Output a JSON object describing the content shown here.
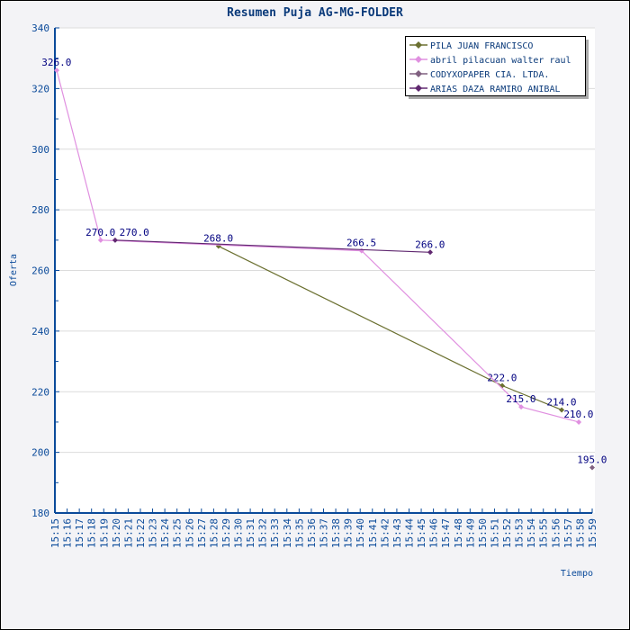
{
  "chart_data": {
    "type": "line",
    "title": "Resumen Puja AG-MG-FOLDER",
    "xlabel": "Tiempo",
    "ylabel": "Oferta",
    "ylim": [
      180,
      340
    ],
    "yticks": [
      180,
      200,
      220,
      240,
      260,
      280,
      300,
      320,
      340
    ],
    "xlim": [
      "15:15",
      "15:59"
    ],
    "xticks": [
      "15:15",
      "15:16",
      "15:17",
      "15:18",
      "15:19",
      "15:20",
      "15:21",
      "15:22",
      "15:23",
      "15:24",
      "15:25",
      "15:26",
      "15:27",
      "15:28",
      "15:29",
      "15:30",
      "15:31",
      "15:32",
      "15:33",
      "15:34",
      "15:35",
      "15:36",
      "15:37",
      "15:38",
      "15:39",
      "15:40",
      "15:41",
      "15:42",
      "15:43",
      "15:44",
      "15:45",
      "15:46",
      "15:47",
      "15:48",
      "15:49",
      "15:50",
      "15:51",
      "15:52",
      "15:53",
      "15:54",
      "15:55",
      "15:56",
      "15:57",
      "15:58",
      "15:59"
    ],
    "grid": true,
    "legend_position": "bottom-center",
    "series": [
      {
        "name": "PILA  JUAN FRANCISCO",
        "color": "#6b7030",
        "points": [
          {
            "x": "15:28:24",
            "y": 268.0,
            "label": "268.0"
          },
          {
            "x": "15:51:38",
            "y": 222.0,
            "label": "222.0"
          },
          {
            "x": "15:56:30",
            "y": 214.0,
            "label": "214.0"
          }
        ]
      },
      {
        "name": "abril pilacuan walter raul",
        "color": "#e090e0",
        "points": [
          {
            "x": "15:15:09",
            "y": 326.0,
            "label": "326.0"
          },
          {
            "x": "15:18:45",
            "y": 270.0,
            "label": "270.0"
          },
          {
            "x": "15:40:07",
            "y": 266.5,
            "label": "266.5"
          },
          {
            "x": "15:53:11",
            "y": 215.0,
            "label": "215.0"
          },
          {
            "x": "15:57:54",
            "y": 210.0,
            "label": "210.0"
          }
        ]
      },
      {
        "name": "CODYXOPAPER CIA. LTDA.",
        "color": "#806080",
        "points": [
          {
            "x": "15:59:00",
            "y": 195.0,
            "label": "195.0"
          }
        ]
      },
      {
        "name": "ARIAS DAZA RAMIRO ANIBAL",
        "color": "#602870",
        "points": [
          {
            "x": "15:19:56",
            "y": 270.0,
            "label": "270.0"
          },
          {
            "x": "15:45:44",
            "y": 266.0,
            "label": "266.0"
          }
        ]
      }
    ]
  }
}
